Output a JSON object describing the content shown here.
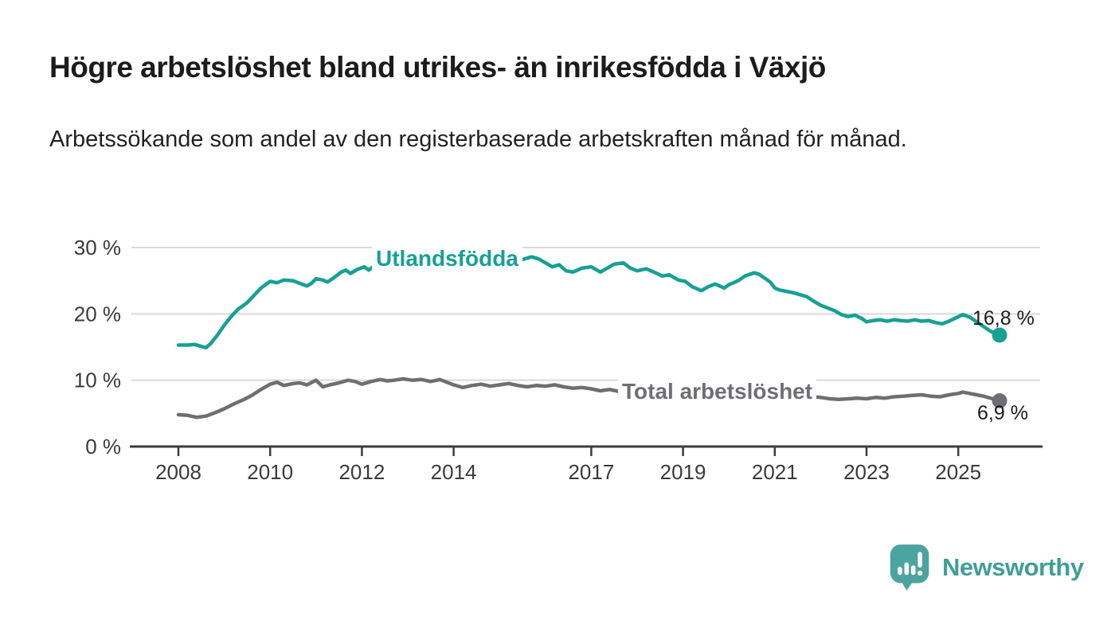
{
  "header": {
    "title": "Högre arbetslöshet bland utrikes- än inrikesfödda i Växjö",
    "subtitle": "Arbetssökande som andel av den registerbaserade arbetskraften månad för månad."
  },
  "chart_data": {
    "type": "line",
    "title": "Högre arbetslöshet bland utrikes- än inrikesfödda i Växjö",
    "subtitle": "Arbetssökande som andel av den registerbaserade arbetskraften månad för månad.",
    "xlabel": "",
    "ylabel": "",
    "ylim": [
      0,
      32
    ],
    "xlim": [
      2007.0,
      2026.85
    ],
    "grid": "horizontal",
    "legend_position": "inline-labels",
    "yticks": [
      {
        "value": 0,
        "label": "0 %"
      },
      {
        "value": 10,
        "label": "10 %"
      },
      {
        "value": 20,
        "label": "20 %"
      },
      {
        "value": 30,
        "label": "30 %"
      }
    ],
    "xticks": [
      {
        "value": 2008,
        "label": "2008"
      },
      {
        "value": 2010,
        "label": "2010"
      },
      {
        "value": 2012,
        "label": "2012"
      },
      {
        "value": 2014,
        "label": "2014"
      },
      {
        "value": 2017,
        "label": "2017"
      },
      {
        "value": 2019,
        "label": "2019"
      },
      {
        "value": 2021,
        "label": "2021"
      },
      {
        "value": 2023,
        "label": "2023"
      },
      {
        "value": 2025,
        "label": "2025"
      }
    ],
    "series": [
      {
        "name": "Utlandsfödda",
        "color": "#17a094",
        "end_label": "16,8 %",
        "last_value": 16.8,
        "points": [
          [
            2008.0,
            15.3
          ],
          [
            2008.2,
            15.3
          ],
          [
            2008.35,
            15.4
          ],
          [
            2008.5,
            15.1
          ],
          [
            2008.6,
            14.9
          ],
          [
            2008.7,
            15.5
          ],
          [
            2008.85,
            16.8
          ],
          [
            2009.0,
            18.3
          ],
          [
            2009.15,
            19.6
          ],
          [
            2009.3,
            20.7
          ],
          [
            2009.5,
            21.7
          ],
          [
            2009.65,
            22.8
          ],
          [
            2009.8,
            23.9
          ],
          [
            2010.0,
            24.9
          ],
          [
            2010.15,
            24.7
          ],
          [
            2010.3,
            25.1
          ],
          [
            2010.5,
            25.0
          ],
          [
            2010.65,
            24.6
          ],
          [
            2010.8,
            24.2
          ],
          [
            2010.9,
            24.6
          ],
          [
            2011.0,
            25.3
          ],
          [
            2011.15,
            25.1
          ],
          [
            2011.25,
            24.8
          ],
          [
            2011.4,
            25.5
          ],
          [
            2011.55,
            26.3
          ],
          [
            2011.65,
            26.6
          ],
          [
            2011.75,
            26.1
          ],
          [
            2011.9,
            26.7
          ],
          [
            2012.05,
            27.1
          ],
          [
            2012.15,
            26.6
          ],
          [
            2012.3,
            27.4
          ],
          [
            2012.5,
            27.9
          ],
          [
            2012.65,
            27.4
          ],
          [
            2012.8,
            27.7
          ],
          [
            2012.95,
            28.2
          ],
          [
            2013.1,
            27.9
          ],
          [
            2013.25,
            28.0
          ],
          [
            2013.4,
            27.7
          ],
          [
            2013.6,
            27.9
          ],
          [
            2013.75,
            27.6
          ],
          [
            2013.9,
            27.8
          ],
          [
            2014.1,
            27.7
          ],
          [
            2014.25,
            27.9
          ],
          [
            2014.4,
            27.6
          ],
          [
            2014.6,
            27.8
          ],
          [
            2014.75,
            27.5
          ],
          [
            2014.9,
            27.7
          ],
          [
            2015.1,
            27.8
          ],
          [
            2015.3,
            28.0
          ],
          [
            2015.5,
            28.2
          ],
          [
            2015.7,
            28.6
          ],
          [
            2015.85,
            28.3
          ],
          [
            2016.0,
            27.7
          ],
          [
            2016.15,
            27.1
          ],
          [
            2016.3,
            27.4
          ],
          [
            2016.45,
            26.5
          ],
          [
            2016.6,
            26.3
          ],
          [
            2016.8,
            26.9
          ],
          [
            2017.0,
            27.1
          ],
          [
            2017.2,
            26.3
          ],
          [
            2017.35,
            26.9
          ],
          [
            2017.5,
            27.5
          ],
          [
            2017.7,
            27.7
          ],
          [
            2017.85,
            26.9
          ],
          [
            2018.0,
            26.5
          ],
          [
            2018.2,
            26.8
          ],
          [
            2018.4,
            26.2
          ],
          [
            2018.55,
            25.7
          ],
          [
            2018.7,
            25.9
          ],
          [
            2018.9,
            25.1
          ],
          [
            2019.05,
            24.9
          ],
          [
            2019.2,
            24.1
          ],
          [
            2019.4,
            23.5
          ],
          [
            2019.55,
            24.1
          ],
          [
            2019.7,
            24.5
          ],
          [
            2019.9,
            23.9
          ],
          [
            2020.0,
            24.4
          ],
          [
            2020.2,
            25.0
          ],
          [
            2020.35,
            25.7
          ],
          [
            2020.55,
            26.2
          ],
          [
            2020.65,
            26.0
          ],
          [
            2020.8,
            25.3
          ],
          [
            2020.9,
            24.8
          ],
          [
            2021.0,
            23.9
          ],
          [
            2021.1,
            23.6
          ],
          [
            2021.25,
            23.4
          ],
          [
            2021.4,
            23.2
          ],
          [
            2021.55,
            22.9
          ],
          [
            2021.7,
            22.6
          ],
          [
            2021.85,
            21.9
          ],
          [
            2022.0,
            21.3
          ],
          [
            2022.15,
            20.9
          ],
          [
            2022.3,
            20.5
          ],
          [
            2022.45,
            19.9
          ],
          [
            2022.6,
            19.6
          ],
          [
            2022.75,
            19.8
          ],
          [
            2022.9,
            19.3
          ],
          [
            2023.0,
            18.8
          ],
          [
            2023.15,
            19.0
          ],
          [
            2023.3,
            19.1
          ],
          [
            2023.45,
            18.9
          ],
          [
            2023.6,
            19.1
          ],
          [
            2023.75,
            19.0
          ],
          [
            2023.9,
            18.9
          ],
          [
            2024.05,
            19.1
          ],
          [
            2024.2,
            18.9
          ],
          [
            2024.35,
            19.0
          ],
          [
            2024.5,
            18.7
          ],
          [
            2024.65,
            18.5
          ],
          [
            2024.8,
            18.9
          ],
          [
            2024.95,
            19.4
          ],
          [
            2025.1,
            19.9
          ],
          [
            2025.25,
            19.5
          ],
          [
            2025.4,
            18.8
          ],
          [
            2025.55,
            18.1
          ],
          [
            2025.7,
            17.4
          ],
          [
            2025.9,
            16.8
          ]
        ]
      },
      {
        "name": "Total arbetslöshet",
        "color": "#6f6e73",
        "end_label": "6,9 %",
        "last_value": 6.9,
        "points": [
          [
            2008.0,
            4.8
          ],
          [
            2008.2,
            4.7
          ],
          [
            2008.4,
            4.4
          ],
          [
            2008.6,
            4.6
          ],
          [
            2008.8,
            5.1
          ],
          [
            2009.0,
            5.7
          ],
          [
            2009.2,
            6.4
          ],
          [
            2009.4,
            7.0
          ],
          [
            2009.6,
            7.7
          ],
          [
            2009.8,
            8.6
          ],
          [
            2010.0,
            9.4
          ],
          [
            2010.15,
            9.7
          ],
          [
            2010.3,
            9.2
          ],
          [
            2010.5,
            9.5
          ],
          [
            2010.65,
            9.6
          ],
          [
            2010.8,
            9.3
          ],
          [
            2011.0,
            10.0
          ],
          [
            2011.15,
            9.0
          ],
          [
            2011.3,
            9.3
          ],
          [
            2011.5,
            9.6
          ],
          [
            2011.7,
            10.0
          ],
          [
            2011.85,
            9.8
          ],
          [
            2012.0,
            9.4
          ],
          [
            2012.2,
            9.8
          ],
          [
            2012.4,
            10.1
          ],
          [
            2012.55,
            9.9
          ],
          [
            2012.7,
            10.0
          ],
          [
            2012.9,
            10.2
          ],
          [
            2013.1,
            10.0
          ],
          [
            2013.3,
            10.1
          ],
          [
            2013.5,
            9.8
          ],
          [
            2013.7,
            10.1
          ],
          [
            2013.85,
            9.7
          ],
          [
            2014.0,
            9.3
          ],
          [
            2014.2,
            8.9
          ],
          [
            2014.4,
            9.2
          ],
          [
            2014.6,
            9.4
          ],
          [
            2014.8,
            9.1
          ],
          [
            2015.0,
            9.3
          ],
          [
            2015.2,
            9.5
          ],
          [
            2015.4,
            9.2
          ],
          [
            2015.6,
            9.0
          ],
          [
            2015.8,
            9.2
          ],
          [
            2016.0,
            9.1
          ],
          [
            2016.2,
            9.3
          ],
          [
            2016.4,
            9.0
          ],
          [
            2016.6,
            8.8
          ],
          [
            2016.8,
            8.9
          ],
          [
            2017.0,
            8.7
          ],
          [
            2017.2,
            8.4
          ],
          [
            2017.4,
            8.6
          ],
          [
            2017.6,
            8.3
          ],
          [
            2017.8,
            8.5
          ],
          [
            2018.0,
            8.3
          ],
          [
            2018.2,
            8.4
          ],
          [
            2018.4,
            8.1
          ],
          [
            2018.6,
            8.2
          ],
          [
            2018.8,
            7.9
          ],
          [
            2019.0,
            7.8
          ],
          [
            2019.2,
            7.6
          ],
          [
            2019.4,
            7.5
          ],
          [
            2019.6,
            7.3
          ],
          [
            2019.8,
            7.5
          ],
          [
            2020.0,
            7.6
          ],
          [
            2020.2,
            7.8
          ],
          [
            2020.4,
            7.9
          ],
          [
            2020.6,
            8.0
          ],
          [
            2020.8,
            8.2
          ],
          [
            2021.0,
            8.1
          ],
          [
            2021.2,
            7.9
          ],
          [
            2021.4,
            7.8
          ],
          [
            2021.6,
            7.7
          ],
          [
            2021.8,
            7.5
          ],
          [
            2022.0,
            7.4
          ],
          [
            2022.2,
            7.2
          ],
          [
            2022.4,
            7.1
          ],
          [
            2022.6,
            7.2
          ],
          [
            2022.8,
            7.3
          ],
          [
            2023.0,
            7.2
          ],
          [
            2023.2,
            7.4
          ],
          [
            2023.4,
            7.3
          ],
          [
            2023.6,
            7.5
          ],
          [
            2023.8,
            7.6
          ],
          [
            2024.0,
            7.7
          ],
          [
            2024.2,
            7.8
          ],
          [
            2024.4,
            7.6
          ],
          [
            2024.6,
            7.5
          ],
          [
            2024.8,
            7.8
          ],
          [
            2025.0,
            8.0
          ],
          [
            2025.1,
            8.2
          ],
          [
            2025.25,
            8.0
          ],
          [
            2025.4,
            7.8
          ],
          [
            2025.55,
            7.6
          ],
          [
            2025.9,
            6.9
          ]
        ]
      }
    ]
  },
  "logo": {
    "text": "Newsworthy",
    "icon": "speech-bubble-bar-chart-exclamation-icon",
    "icon_color": "#4ba49f",
    "text_color": "#3f9e99"
  },
  "colors": {
    "background": "#ffffff",
    "grid": "#d9d9d9",
    "axis": "#3c3c3c",
    "axis_text": "#3a3a3a",
    "series_utlandsfodda": "#17a094",
    "series_total": "#6f6e73"
  }
}
